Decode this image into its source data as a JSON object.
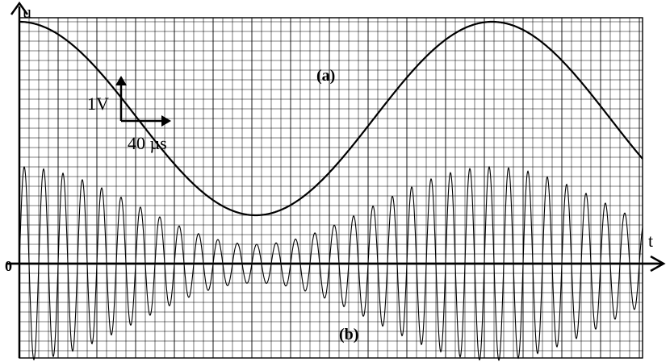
{
  "chart_data": {
    "type": "line",
    "axes": {
      "y_axis_label": "u",
      "x_axis_label": "t",
      "origin_label": "0"
    },
    "scale": {
      "vertical_label": "1V",
      "horizontal_label": "40 µs",
      "volts_per_division": 1,
      "microseconds_per_division": 40
    },
    "grid": true,
    "series": [
      {
        "name": "(a)",
        "waveform": "sine",
        "amplitude_divisions": 2.5,
        "offset_divisions": 3.75,
        "period_divisions": 12.2,
        "phase": "max at t = 0"
      },
      {
        "name": "(b)",
        "waveform": "amplitude-modulated",
        "offset_divisions": 0,
        "envelope_max_divisions": 2.5,
        "envelope_min_divisions": 0.5,
        "envelope_period_divisions": 12.2,
        "carrier_period_divisions": 0.5
      }
    ]
  }
}
